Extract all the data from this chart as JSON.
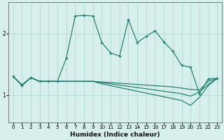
{
  "xlabel": "Humidex (Indice chaleur)",
  "ylabel": "",
  "bg_color": "#d6efec",
  "grid_color": "#b8dbd8",
  "line_color": "#1e7a6e",
  "xlim": [
    -0.5,
    23.5
  ],
  "ylim": [
    0.55,
    2.5
  ],
  "xticks": [
    0,
    1,
    2,
    3,
    4,
    5,
    6,
    7,
    8,
    9,
    10,
    11,
    12,
    13,
    14,
    15,
    16,
    17,
    18,
    19,
    20,
    21,
    22,
    23
  ],
  "yticks": [
    1,
    2
  ],
  "curve1_x": [
    0,
    1,
    2,
    3,
    4,
    5,
    6,
    7,
    8,
    9,
    10,
    11,
    12,
    13,
    14,
    15,
    16,
    17,
    18,
    19,
    20,
    21,
    22,
    23
  ],
  "curve1_y": [
    1.3,
    1.15,
    1.28,
    1.22,
    1.22,
    1.22,
    1.6,
    2.28,
    2.29,
    2.28,
    1.85,
    1.68,
    1.63,
    2.22,
    1.85,
    1.95,
    2.04,
    1.86,
    1.71,
    1.48,
    1.45,
    1.02,
    1.26,
    1.27
  ],
  "curve2_x": [
    0,
    1,
    2,
    3,
    4,
    5,
    6,
    7,
    8,
    9,
    10,
    11,
    12,
    13,
    14,
    15,
    16,
    17,
    18,
    19,
    20,
    21,
    22,
    23
  ],
  "curve2_y": [
    1.3,
    1.16,
    1.28,
    1.22,
    1.22,
    1.22,
    1.22,
    1.22,
    1.22,
    1.22,
    1.21,
    1.2,
    1.19,
    1.18,
    1.17,
    1.16,
    1.15,
    1.14,
    1.13,
    1.11,
    1.09,
    1.08,
    1.22,
    1.27
  ],
  "curve3_x": [
    0,
    1,
    2,
    3,
    4,
    5,
    6,
    7,
    8,
    9,
    10,
    11,
    12,
    13,
    14,
    15,
    16,
    17,
    18,
    19,
    20,
    21,
    22,
    23
  ],
  "curve3_y": [
    1.3,
    1.16,
    1.28,
    1.22,
    1.22,
    1.22,
    1.22,
    1.22,
    1.22,
    1.22,
    1.2,
    1.18,
    1.16,
    1.14,
    1.12,
    1.1,
    1.08,
    1.06,
    1.04,
    1.02,
    0.98,
    1.05,
    1.17,
    1.27
  ],
  "curve4_x": [
    0,
    1,
    2,
    3,
    4,
    5,
    6,
    7,
    8,
    9,
    10,
    11,
    12,
    13,
    14,
    15,
    16,
    17,
    18,
    19,
    20,
    21,
    22,
    23
  ],
  "curve4_y": [
    1.3,
    1.16,
    1.28,
    1.22,
    1.22,
    1.22,
    1.22,
    1.22,
    1.22,
    1.22,
    1.18,
    1.15,
    1.12,
    1.09,
    1.06,
    1.03,
    1.0,
    0.97,
    0.94,
    0.91,
    0.83,
    0.96,
    1.15,
    1.27
  ]
}
